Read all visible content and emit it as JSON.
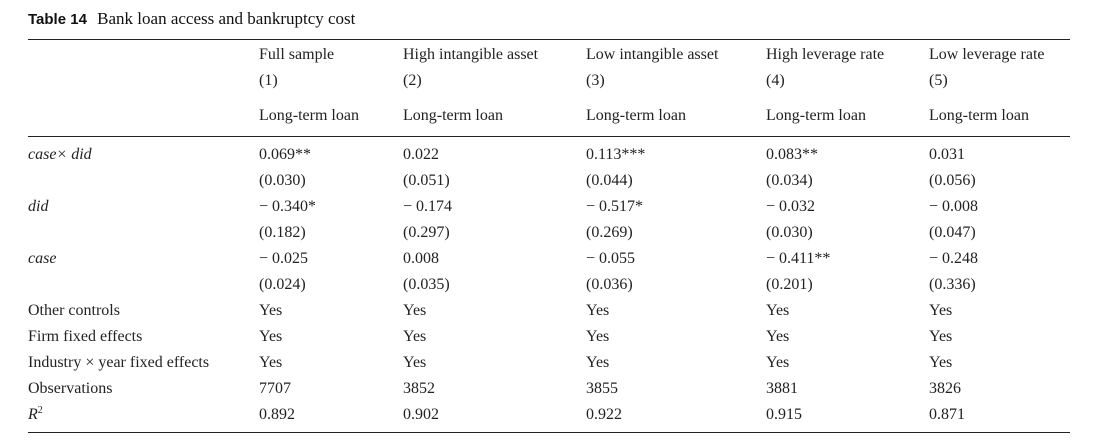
{
  "caption": {
    "number": "Table 14",
    "title": "Bank loan access and bankruptcy cost"
  },
  "columns": [
    {
      "name": "Full sample",
      "index": "(1)",
      "dep": "Long-term loan"
    },
    {
      "name": "High intangible asset",
      "index": "(2)",
      "dep": "Long-term loan"
    },
    {
      "name": "Low intangible asset",
      "index": "(3)",
      "dep": "Long-term loan"
    },
    {
      "name": "High leverage rate",
      "index": "(4)",
      "dep": "Long-term loan"
    },
    {
      "name": "Low leverage rate",
      "index": "(5)",
      "dep": "Long-term loan"
    }
  ],
  "rows": [
    {
      "label": "case× did",
      "italic": true,
      "coef": [
        "0.069**",
        "0.022",
        "0.113***",
        "0.083**",
        "0.031"
      ],
      "se": [
        "(0.030)",
        "(0.051)",
        "(0.044)",
        "(0.034)",
        "(0.056)"
      ]
    },
    {
      "label": "did",
      "italic": true,
      "coef": [
        "− 0.340*",
        "− 0.174",
        "− 0.517*",
        "− 0.032",
        "− 0.008"
      ],
      "se": [
        "(0.182)",
        "(0.297)",
        "(0.269)",
        "(0.030)",
        "(0.047)"
      ]
    },
    {
      "label": "case",
      "italic": true,
      "coef": [
        "− 0.025",
        "0.008",
        "− 0.055",
        "− 0.411**",
        "− 0.248"
      ],
      "se": [
        "(0.024)",
        "(0.035)",
        "(0.036)",
        "(0.201)",
        "(0.336)"
      ]
    },
    {
      "label": "Other controls",
      "italic": false,
      "values": [
        "Yes",
        "Yes",
        "Yes",
        "Yes",
        "Yes"
      ]
    },
    {
      "label": "Firm fixed effects",
      "italic": false,
      "values": [
        "Yes",
        "Yes",
        "Yes",
        "Yes",
        "Yes"
      ]
    },
    {
      "label": "Industry × year fixed effects",
      "italic": false,
      "values": [
        "Yes",
        "Yes",
        "Yes",
        "Yes",
        "Yes"
      ]
    },
    {
      "label": "Observations",
      "italic": false,
      "values": [
        "7707",
        "3852",
        "3855",
        "3881",
        "3826"
      ]
    },
    {
      "label": "R",
      "label_sup": "2",
      "italic": true,
      "values": [
        "0.892",
        "0.902",
        "0.922",
        "0.915",
        "0.871"
      ]
    }
  ]
}
